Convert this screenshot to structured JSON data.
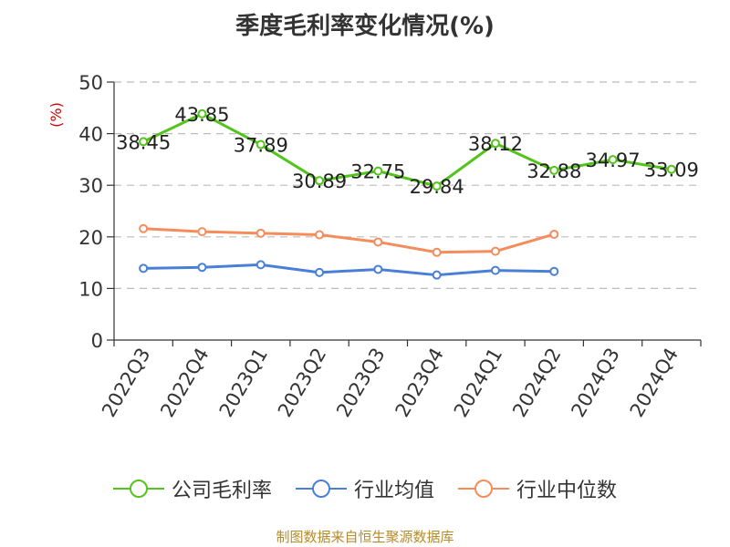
{
  "chart_data": {
    "type": "line",
    "title": "季度毛利率变化情况(%)",
    "ylabel": "(%)",
    "xlabel": "",
    "categories": [
      "2022Q3",
      "2022Q4",
      "2023Q1",
      "2023Q2",
      "2023Q3",
      "2023Q4",
      "2024Q1",
      "2024Q2",
      "2024Q3",
      "2024Q4"
    ],
    "ylim": [
      0,
      50
    ],
    "yticks": [
      0,
      10,
      20,
      30,
      40,
      50
    ],
    "grid": true,
    "legend_position": "bottom",
    "series": [
      {
        "name": "公司毛利率",
        "color": "#52c41a",
        "show_labels": true,
        "values": [
          38.45,
          43.85,
          37.89,
          30.89,
          32.75,
          29.84,
          38.12,
          32.88,
          34.97,
          33.09
        ]
      },
      {
        "name": "行业均值",
        "color": "#4a7fd8",
        "show_labels": false,
        "values": [
          13.9,
          14.1,
          14.6,
          13.1,
          13.7,
          12.6,
          13.5,
          13.3,
          null,
          null
        ]
      },
      {
        "name": "行业中位数",
        "color": "#f58c5c",
        "show_labels": false,
        "values": [
          21.6,
          21.0,
          20.7,
          20.4,
          19.0,
          17.0,
          17.2,
          20.5,
          null,
          null
        ]
      }
    ],
    "source": "制图数据来自恒生聚源数据库"
  }
}
